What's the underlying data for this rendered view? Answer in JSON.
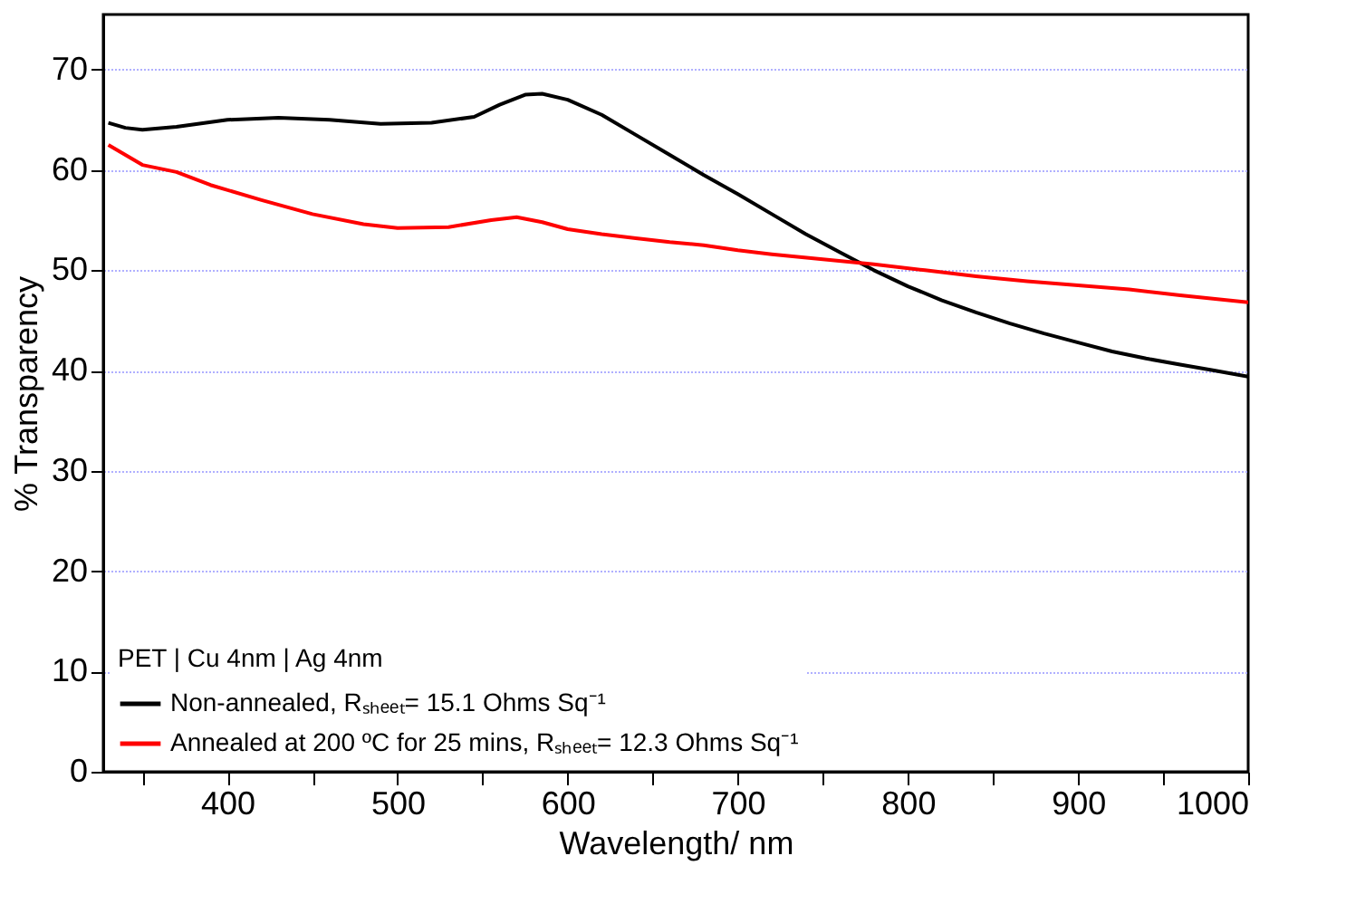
{
  "chart_data": {
    "type": "line",
    "xlabel": "Wavelength/ nm",
    "ylabel": "% Transparency",
    "legend_title": "PET | Cu 4nm | Ag 4nm",
    "legend": "bottom left",
    "grid": "y",
    "line_style": "solid",
    "marker": "none",
    "xlim": [
      327,
      1000
    ],
    "ylim": [
      0,
      75.5
    ],
    "xticks": [
      {
        "value": 350,
        "label": null
      },
      400,
      {
        "value": 450,
        "label": null
      },
      500,
      {
        "value": 550,
        "label": null
      },
      600,
      {
        "value": 650,
        "label": null
      },
      700,
      {
        "value": 750,
        "label": null
      },
      800,
      {
        "value": 850,
        "label": null
      },
      900,
      {
        "value": 950,
        "label": null
      },
      1000
    ],
    "yticks": [
      0,
      10,
      20,
      30,
      40,
      50,
      60,
      70
    ],
    "series": [
      {
        "name": "Non-annealed,  Rₛₕₑₑₜ= 15.1 Ohms Sq⁻¹",
        "color": "#000000",
        "x": [
          330,
          340,
          350,
          370,
          400,
          430,
          460,
          490,
          520,
          545,
          560,
          575,
          585,
          600,
          620,
          640,
          660,
          680,
          700,
          720,
          740,
          760,
          780,
          800,
          820,
          840,
          860,
          880,
          900,
          920,
          940,
          960,
          980,
          1000
        ],
        "values": [
          64.7,
          64.2,
          64.0,
          64.3,
          65.0,
          65.2,
          65.0,
          64.6,
          64.7,
          65.3,
          66.5,
          67.5,
          67.6,
          67.0,
          65.5,
          63.5,
          61.5,
          59.5,
          57.6,
          55.6,
          53.6,
          51.8,
          50.0,
          48.4,
          47.0,
          45.8,
          44.7,
          43.7,
          42.8,
          41.9,
          41.2,
          40.6,
          40.0,
          39.4
        ]
      },
      {
        "name": "Annealed at 200 ºC for 25 mins, Rₛₕₑₑₜ= 12.3 Ohms Sq⁻¹",
        "color": "#ff0000",
        "x": [
          330,
          340,
          350,
          370,
          390,
          420,
          450,
          480,
          500,
          530,
          555,
          570,
          585,
          600,
          620,
          640,
          660,
          680,
          700,
          720,
          750,
          780,
          810,
          840,
          870,
          900,
          930,
          960,
          1000
        ],
        "values": [
          62.5,
          61.5,
          60.5,
          59.8,
          58.5,
          57.0,
          55.6,
          54.6,
          54.2,
          54.3,
          55.0,
          55.3,
          54.8,
          54.1,
          53.6,
          53.2,
          52.8,
          52.5,
          52.0,
          51.6,
          51.1,
          50.6,
          50.0,
          49.4,
          48.9,
          48.5,
          48.1,
          47.5,
          46.8
        ]
      }
    ]
  }
}
